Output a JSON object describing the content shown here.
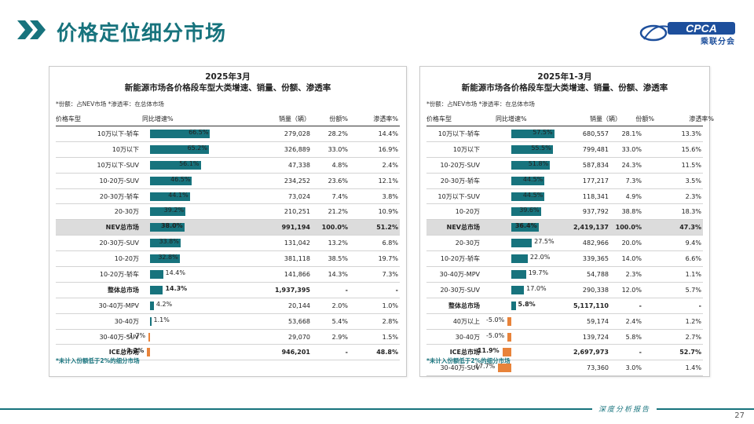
{
  "page_title": "价格定位细分市场",
  "logo": {
    "text": "CPCA",
    "sub": "乘联分会"
  },
  "left": {
    "title_line1": "2025年3月",
    "title_line2": "新能源市场各价格段车型大类增速、销量、份额、渗透率",
    "note": "*份额：占NEV市场  *渗透率：在总体市场",
    "headers": {
      "cat": "价格车型",
      "growth": "同比增速%",
      "sales": "销量（辆）",
      "share": "份额%",
      "pen": "渗透率%"
    },
    "footnote": "*未计入份额低于2%的细分市场",
    "rows": [
      {
        "cat": "10万以下-轿车",
        "g": 66.5,
        "gl": "66.5%",
        "sales": "279,028",
        "share": "28.2%",
        "pen": "14.4%",
        "style": ""
      },
      {
        "cat": "10万以下",
        "g": 65.2,
        "gl": "65.2%",
        "sales": "326,889",
        "share": "33.0%",
        "pen": "16.9%",
        "style": ""
      },
      {
        "cat": "10万以下-SUV",
        "g": 56.1,
        "gl": "56.1%",
        "sales": "47,338",
        "share": "4.8%",
        "pen": "2.4%",
        "style": ""
      },
      {
        "cat": "10-20万-SUV",
        "g": 46.5,
        "gl": "46.5%",
        "sales": "234,252",
        "share": "23.6%",
        "pen": "12.1%",
        "style": ""
      },
      {
        "cat": "20-30万-轿车",
        "g": 44.1,
        "gl": "44.1%",
        "sales": "73,024",
        "share": "7.4%",
        "pen": "3.8%",
        "style": ""
      },
      {
        "cat": "20-30万",
        "g": 39.2,
        "gl": "39.2%",
        "sales": "210,251",
        "share": "21.2%",
        "pen": "10.9%",
        "style": ""
      },
      {
        "cat": "NEV总市场",
        "g": 38.0,
        "gl": "38.0%",
        "sales": "991,194",
        "share": "100.0%",
        "pen": "51.2%",
        "style": "hl"
      },
      {
        "cat": "20-30万-SUV",
        "g": 33.8,
        "gl": "33.8%",
        "sales": "131,042",
        "share": "13.2%",
        "pen": "6.8%",
        "style": ""
      },
      {
        "cat": "10-20万",
        "g": 32.8,
        "gl": "32.8%",
        "sales": "381,118",
        "share": "38.5%",
        "pen": "19.7%",
        "style": ""
      },
      {
        "cat": "10-20万-轿车",
        "g": 14.4,
        "gl": "14.4%",
        "sales": "141,866",
        "share": "14.3%",
        "pen": "7.3%",
        "style": ""
      },
      {
        "cat": "整体总市场",
        "g": 14.3,
        "gl": "14.3%",
        "sales": "1,937,395",
        "share": "-",
        "pen": "-",
        "style": "bold"
      },
      {
        "cat": "30-40万-MPV",
        "g": 4.2,
        "gl": "4.2%",
        "sales": "20,144",
        "share": "2.0%",
        "pen": "1.0%",
        "style": ""
      },
      {
        "cat": "30-40万",
        "g": 1.1,
        "gl": "1.1%",
        "sales": "53,668",
        "share": "5.4%",
        "pen": "2.8%",
        "style": ""
      },
      {
        "cat": "30-40万-SUV",
        "g": -1.7,
        "gl": "-1.7%",
        "sales": "29,070",
        "share": "2.9%",
        "pen": "1.5%",
        "style": ""
      },
      {
        "cat": "ICE总市场",
        "g": -3.2,
        "gl": "-3.2%",
        "sales": "946,201",
        "share": "-",
        "pen": "48.8%",
        "style": "bold"
      }
    ]
  },
  "right": {
    "title_line1": "2025年1-3月",
    "title_line2": "新能源市场各价格段车型大类增速、销量、份额、渗透率",
    "note": "*份额：占NEV市场  *渗透率：在总体市场",
    "headers": {
      "cat": "价格车型",
      "growth": "同比增速%",
      "sales": "销量（辆）",
      "share": "份额%",
      "pen": "渗透率%"
    },
    "footnote": "*未计入份额低于2%的细分市场",
    "rows": [
      {
        "cat": "10万以下-轿车",
        "g": 57.5,
        "gl": "57.5%",
        "sales": "680,557",
        "share": "28.1%",
        "pen": "13.3%",
        "style": ""
      },
      {
        "cat": "10万以下",
        "g": 55.5,
        "gl": "55.5%",
        "sales": "799,481",
        "share": "33.0%",
        "pen": "15.6%",
        "style": ""
      },
      {
        "cat": "10-20万-SUV",
        "g": 51.8,
        "gl": "51.8%",
        "sales": "587,834",
        "share": "24.3%",
        "pen": "11.5%",
        "style": ""
      },
      {
        "cat": "20-30万-轿车",
        "g": 44.5,
        "gl": "44.5%",
        "sales": "177,217",
        "share": "7.3%",
        "pen": "3.5%",
        "style": ""
      },
      {
        "cat": "10万以下-SUV",
        "g": 44.5,
        "gl": "44.5%",
        "sales": "118,341",
        "share": "4.9%",
        "pen": "2.3%",
        "style": ""
      },
      {
        "cat": "10-20万",
        "g": 39.6,
        "gl": "39.6%",
        "sales": "937,792",
        "share": "38.8%",
        "pen": "18.3%",
        "style": ""
      },
      {
        "cat": "NEV总市场",
        "g": 36.4,
        "gl": "36.4%",
        "sales": "2,419,137",
        "share": "100.0%",
        "pen": "47.3%",
        "style": "hl"
      },
      {
        "cat": "20-30万",
        "g": 27.5,
        "gl": "27.5%",
        "sales": "482,966",
        "share": "20.0%",
        "pen": "9.4%",
        "style": ""
      },
      {
        "cat": "10-20万-轿车",
        "g": 22.0,
        "gl": "22.0%",
        "sales": "339,365",
        "share": "14.0%",
        "pen": "6.6%",
        "style": ""
      },
      {
        "cat": "30-40万-MPV",
        "g": 19.7,
        "gl": "19.7%",
        "sales": "54,788",
        "share": "2.3%",
        "pen": "1.1%",
        "style": ""
      },
      {
        "cat": "20-30万-SUV",
        "g": 17.0,
        "gl": "17.0%",
        "sales": "290,338",
        "share": "12.0%",
        "pen": "5.7%",
        "style": ""
      },
      {
        "cat": "整体总市场",
        "g": 5.8,
        "gl": "5.8%",
        "sales": "5,117,110",
        "share": "-",
        "pen": "-",
        "style": "bold"
      },
      {
        "cat": "40万以上",
        "g": -5.0,
        "gl": "-5.0%",
        "sales": "59,174",
        "share": "2.4%",
        "pen": "1.2%",
        "style": ""
      },
      {
        "cat": "30-40万",
        "g": -5.0,
        "gl": "-5.0%",
        "sales": "139,724",
        "share": "5.8%",
        "pen": "2.7%",
        "style": ""
      },
      {
        "cat": "ICE总市场",
        "g": -11.9,
        "gl": "-11.9%",
        "sales": "2,697,973",
        "share": "-",
        "pen": "52.7%",
        "style": "bold"
      },
      {
        "cat": "30-40万-SUV",
        "g": -17.7,
        "gl": "-17.7%",
        "sales": "73,360",
        "share": "3.0%",
        "pen": "1.4%",
        "style": ""
      }
    ]
  },
  "bottom_tag": "深度分析报告",
  "page_number": "27",
  "colors": {
    "accent": "#17737d",
    "negative": "#e8833a",
    "highlight_row": "#dcdcdc"
  }
}
